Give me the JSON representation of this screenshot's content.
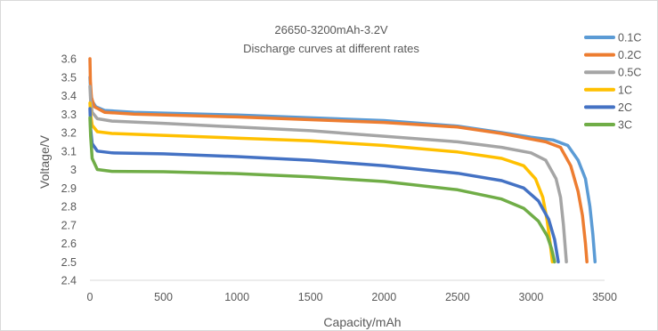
{
  "chart_data": {
    "type": "line",
    "title": "26650-3200mAh-3.2V",
    "subtitle": "Discharge curves at different rates",
    "xlabel": "Capacity/mAh",
    "ylabel": "Voltage/V",
    "xlim": [
      0,
      3500
    ],
    "ylim": [
      2.4,
      3.6
    ],
    "xticks": [
      "0",
      "500",
      "1000",
      "1500",
      "2000",
      "2500",
      "3000",
      "3500"
    ],
    "yticks": [
      "2.4",
      "2.5",
      "2.6",
      "2.7",
      "2.8",
      "2.9",
      "3",
      "3.1",
      "3.2",
      "3.3",
      "3.4",
      "3.5",
      "3.6"
    ],
    "grid": "none",
    "legend_position": "right",
    "series": [
      {
        "name": "0.1C",
        "color": "#5b9bd5",
        "points": [
          [
            0,
            3.5
          ],
          [
            5,
            3.42
          ],
          [
            15,
            3.37
          ],
          [
            40,
            3.34
          ],
          [
            100,
            3.32
          ],
          [
            300,
            3.31
          ],
          [
            1000,
            3.295
          ],
          [
            1500,
            3.28
          ],
          [
            2000,
            3.265
          ],
          [
            2500,
            3.235
          ],
          [
            2800,
            3.2
          ],
          [
            3000,
            3.175
          ],
          [
            3150,
            3.16
          ],
          [
            3250,
            3.13
          ],
          [
            3320,
            3.05
          ],
          [
            3370,
            2.95
          ],
          [
            3400,
            2.8
          ],
          [
            3420,
            2.65
          ],
          [
            3435,
            2.5
          ]
        ]
      },
      {
        "name": "0.2C",
        "color": "#ed7d31",
        "points": [
          [
            0,
            3.6
          ],
          [
            3,
            3.48
          ],
          [
            10,
            3.39
          ],
          [
            30,
            3.34
          ],
          [
            100,
            3.31
          ],
          [
            300,
            3.3
          ],
          [
            1000,
            3.285
          ],
          [
            1500,
            3.27
          ],
          [
            2000,
            3.255
          ],
          [
            2500,
            3.23
          ],
          [
            2800,
            3.195
          ],
          [
            3000,
            3.165
          ],
          [
            3100,
            3.15
          ],
          [
            3200,
            3.12
          ],
          [
            3270,
            3.02
          ],
          [
            3320,
            2.88
          ],
          [
            3350,
            2.75
          ],
          [
            3370,
            2.6
          ],
          [
            3380,
            2.5
          ]
        ]
      },
      {
        "name": "0.5C",
        "color": "#a5a5a5",
        "points": [
          [
            0,
            3.45
          ],
          [
            5,
            3.37
          ],
          [
            15,
            3.31
          ],
          [
            50,
            3.275
          ],
          [
            150,
            3.262
          ],
          [
            500,
            3.25
          ],
          [
            1000,
            3.23
          ],
          [
            1500,
            3.21
          ],
          [
            2000,
            3.18
          ],
          [
            2500,
            3.15
          ],
          [
            2800,
            3.12
          ],
          [
            3000,
            3.09
          ],
          [
            3100,
            3.05
          ],
          [
            3170,
            2.95
          ],
          [
            3200,
            2.85
          ],
          [
            3220,
            2.7
          ],
          [
            3240,
            2.5
          ]
        ]
      },
      {
        "name": "1C",
        "color": "#ffc000",
        "points": [
          [
            0,
            3.36
          ],
          [
            5,
            3.3
          ],
          [
            15,
            3.24
          ],
          [
            50,
            3.205
          ],
          [
            150,
            3.195
          ],
          [
            500,
            3.185
          ],
          [
            1000,
            3.17
          ],
          [
            1500,
            3.155
          ],
          [
            2000,
            3.13
          ],
          [
            2500,
            3.095
          ],
          [
            2800,
            3.06
          ],
          [
            2950,
            3.02
          ],
          [
            3030,
            2.95
          ],
          [
            3080,
            2.85
          ],
          [
            3110,
            2.72
          ],
          [
            3130,
            2.6
          ],
          [
            3145,
            2.5
          ]
        ]
      },
      {
        "name": "2C",
        "color": "#4472c4",
        "points": [
          [
            0,
            3.33
          ],
          [
            5,
            3.22
          ],
          [
            15,
            3.14
          ],
          [
            50,
            3.1
          ],
          [
            150,
            3.09
          ],
          [
            500,
            3.085
          ],
          [
            1000,
            3.07
          ],
          [
            1500,
            3.05
          ],
          [
            2000,
            3.02
          ],
          [
            2500,
            2.98
          ],
          [
            2800,
            2.94
          ],
          [
            2950,
            2.9
          ],
          [
            3050,
            2.83
          ],
          [
            3120,
            2.73
          ],
          [
            3160,
            2.62
          ],
          [
            3185,
            2.5
          ]
        ]
      },
      {
        "name": "3C",
        "color": "#70ad47",
        "points": [
          [
            0,
            3.28
          ],
          [
            5,
            3.18
          ],
          [
            15,
            3.06
          ],
          [
            50,
            3.0
          ],
          [
            150,
            2.99
          ],
          [
            500,
            2.988
          ],
          [
            1000,
            2.978
          ],
          [
            1500,
            2.96
          ],
          [
            2000,
            2.935
          ],
          [
            2500,
            2.89
          ],
          [
            2800,
            2.84
          ],
          [
            2950,
            2.79
          ],
          [
            3050,
            2.72
          ],
          [
            3110,
            2.64
          ],
          [
            3140,
            2.57
          ],
          [
            3160,
            2.5
          ]
        ]
      }
    ]
  }
}
